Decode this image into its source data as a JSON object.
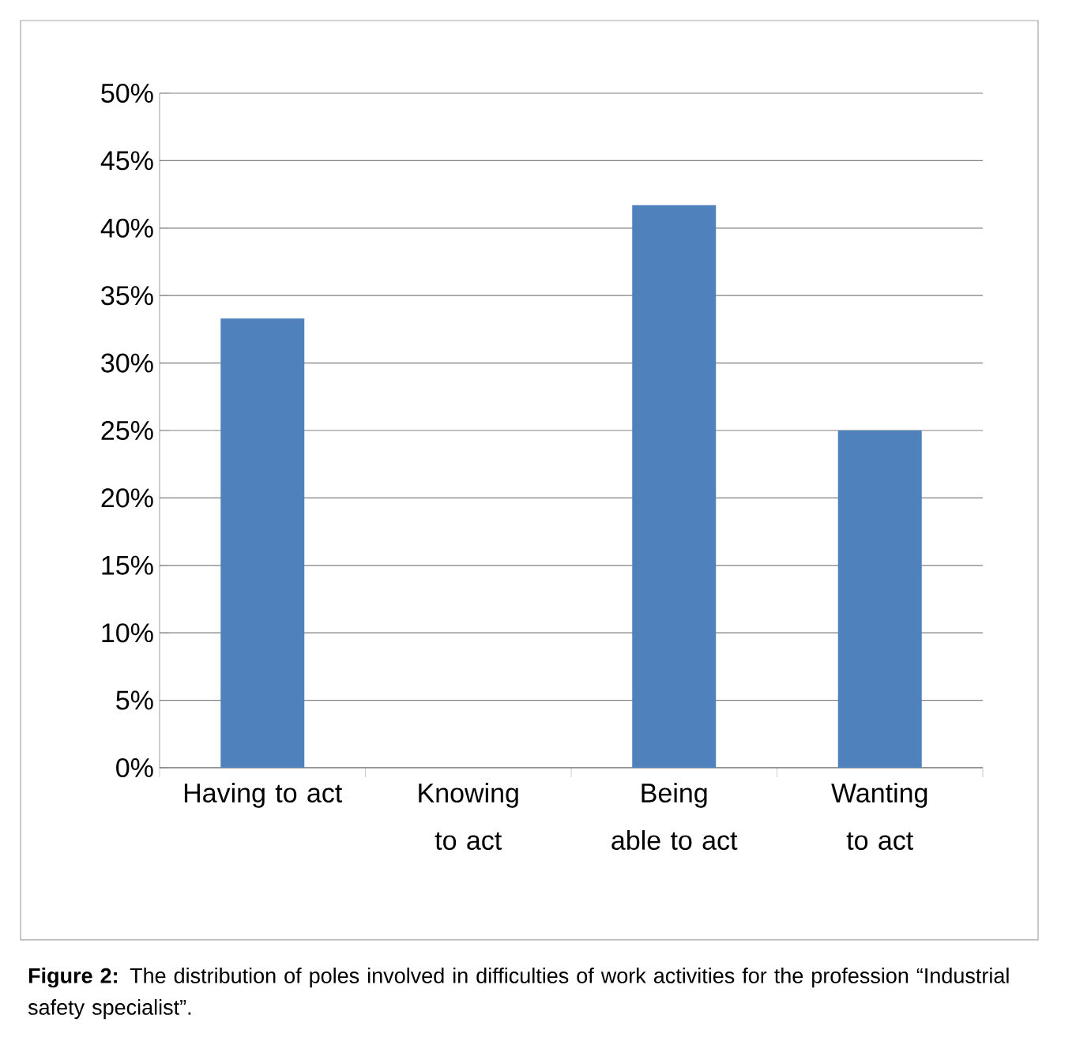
{
  "chart_data": {
    "type": "bar",
    "categories": [
      "Having to act",
      "Knowing to act",
      "Being able to act",
      "Wanting to act"
    ],
    "values": [
      33.3,
      0,
      41.7,
      25
    ],
    "color": "#4f81bd",
    "ylim": [
      0,
      50
    ],
    "yticks": [
      {
        "value": 0,
        "label": "0%"
      },
      {
        "value": 5,
        "label": "5%"
      },
      {
        "value": 10,
        "label": "10%"
      },
      {
        "value": 15,
        "label": "15%"
      },
      {
        "value": 20,
        "label": "20%"
      },
      {
        "value": 25,
        "label": "25%"
      },
      {
        "value": 30,
        "label": "30%"
      },
      {
        "value": 35,
        "label": "35%"
      },
      {
        "value": 40,
        "label": "40%"
      },
      {
        "value": 45,
        "label": "45%"
      },
      {
        "value": 50,
        "label": "50%"
      }
    ],
    "grid": "y",
    "annotations": [
      "**Figure 2:** The distribution of poles involved in difficulties of work activities for the profession “Industrial safety specialist”."
    ]
  }
}
